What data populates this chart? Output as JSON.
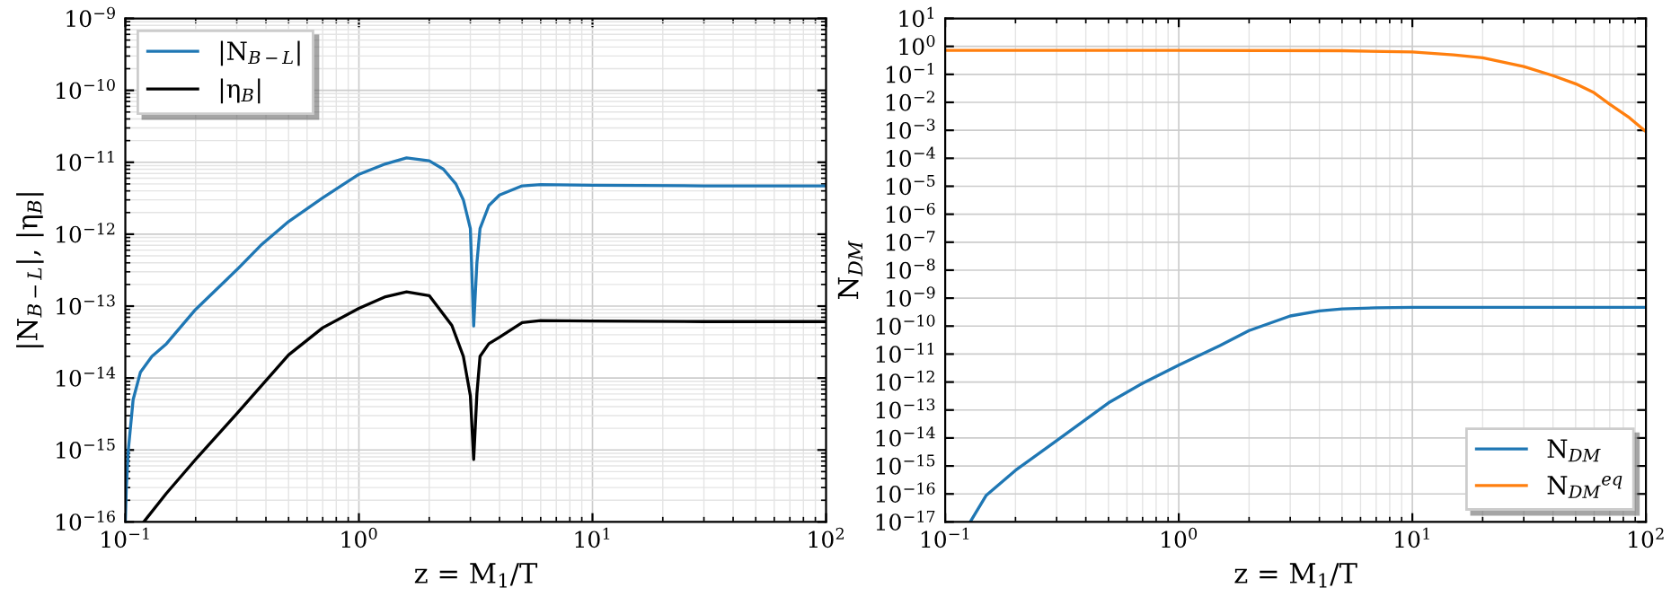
{
  "chart_data": [
    {
      "type": "line",
      "xlabel": "z = M$_{1}$/T",
      "ylabel": "|N$_{B−L}$|, |η$_{B}$|",
      "log": "xy",
      "xlim": [
        0.1,
        100
      ],
      "ylim": [
        1e-16,
        1e-09
      ],
      "xticks": [
        {
          "value": 0.1,
          "label": "10$^{−1}$"
        },
        {
          "value": 1,
          "label": "10$^{0}$"
        },
        {
          "value": 10,
          "label": "10$^{1}$"
        },
        {
          "value": 100,
          "label": "10$^{2}$"
        }
      ],
      "yticks": [
        {
          "value": 1e-16,
          "label": "10$^{−16}$"
        },
        {
          "value": 1e-15,
          "label": "10$^{−15}$"
        },
        {
          "value": 1e-14,
          "label": "10$^{−14}$"
        },
        {
          "value": 1e-13,
          "label": "10$^{−13}$"
        },
        {
          "value": 1e-12,
          "label": "10$^{−12}$"
        },
        {
          "value": 1e-11,
          "label": "10$^{−11}$"
        },
        {
          "value": 1e-10,
          "label": "10$^{−10}$"
        },
        {
          "value": 1e-09,
          "label": "10$^{−9}$"
        }
      ],
      "grid": true,
      "legend": "top left",
      "line_style": "solid",
      "marker": "none",
      "series": [
        {
          "name": "|N$_{B−L}$|",
          "color": "#1f77b4",
          "x": [
            0.1,
            0.101,
            0.103,
            0.108,
            0.116,
            0.13,
            0.15,
            0.2,
            0.3,
            0.38,
            0.5,
            0.7,
            1,
            1.3,
            1.6,
            2,
            2.3,
            2.6,
            2.8,
            3.0,
            3.1,
            3.2,
            3.3,
            3.6,
            4,
            5,
            6,
            10,
            30,
            100
          ],
          "values": [
            1e-16,
            3e-16,
            1e-15,
            5e-15,
            1.2e-14,
            2e-14,
            3e-14,
            9e-14,
            3.2e-13,
            7e-13,
            1.5e-12,
            3.2e-12,
            6.8e-12,
            9.5e-12,
            1.15e-11,
            1.05e-11,
            8e-12,
            5e-12,
            3e-12,
            1.2e-12,
            5.3e-14,
            4e-13,
            1.2e-12,
            2.5e-12,
            3.5e-12,
            4.7e-12,
            4.9e-12,
            4.8e-12,
            4.7e-12,
            4.7e-12
          ]
        },
        {
          "name": "|η$_{B}$|",
          "color": "#000000",
          "x": [
            0.12,
            0.15,
            0.2,
            0.3,
            0.5,
            0.7,
            1,
            1.3,
            1.6,
            2,
            2.5,
            2.8,
            3.0,
            3.1,
            3.2,
            3.3,
            3.6,
            4,
            5,
            6,
            10,
            30,
            100
          ],
          "values": [
            1e-16,
            2.5e-16,
            7.4e-16,
            3.2e-15,
            2.1e-14,
            5e-14,
            9.3e-14,
            1.35e-13,
            1.58e-13,
            1.4e-13,
            5.4e-14,
            2e-14,
            5.7e-15,
            7.4e-16,
            6e-15,
            2e-14,
            3e-14,
            3.7e-14,
            5.9e-14,
            6.3e-14,
            6.2e-14,
            6.1e-14,
            6.1e-14
          ]
        }
      ]
    },
    {
      "type": "line",
      "xlabel": "z = M$_{1}$/T",
      "ylabel": "N$_{DM}$",
      "log": "xy",
      "xlim": [
        0.1,
        100
      ],
      "ylim": [
        1e-17,
        10
      ],
      "xticks": [
        {
          "value": 0.1,
          "label": "10$^{−1}$"
        },
        {
          "value": 1,
          "label": "10$^{0}$"
        },
        {
          "value": 10,
          "label": "10$^{1}$"
        },
        {
          "value": 100,
          "label": "10$^{2}$"
        }
      ],
      "yticks": [
        {
          "value": 1e-17,
          "label": "10$^{−17}$"
        },
        {
          "value": 1e-16,
          "label": "10$^{−16}$"
        },
        {
          "value": 1e-15,
          "label": "10$^{−15}$"
        },
        {
          "value": 1e-14,
          "label": "10$^{−14}$"
        },
        {
          "value": 1e-13,
          "label": "10$^{−13}$"
        },
        {
          "value": 1e-12,
          "label": "10$^{−12}$"
        },
        {
          "value": 1e-11,
          "label": "10$^{−11}$"
        },
        {
          "value": 1e-10,
          "label": "10$^{−10}$"
        },
        {
          "value": 1e-09,
          "label": "10$^{−9}$"
        },
        {
          "value": 1e-08,
          "label": "10$^{−8}$"
        },
        {
          "value": 1e-07,
          "label": "10$^{−7}$"
        },
        {
          "value": 1e-06,
          "label": "10$^{−6}$"
        },
        {
          "value": 1e-05,
          "label": "10$^{−5}$"
        },
        {
          "value": 0.0001,
          "label": "10$^{−4}$"
        },
        {
          "value": 0.001,
          "label": "10$^{−3}$"
        },
        {
          "value": 0.01,
          "label": "10$^{−2}$"
        },
        {
          "value": 0.1,
          "label": "10$^{−1}$"
        },
        {
          "value": 1,
          "label": "10$^{0}$"
        },
        {
          "value": 10,
          "label": "10$^{1}$"
        }
      ],
      "grid": true,
      "legend": "bottom right",
      "line_style": "solid",
      "marker": "none",
      "series": [
        {
          "name": "N$_{DM}$",
          "color": "#1f77b4",
          "x": [
            0.128,
            0.15,
            0.2,
            0.3,
            0.5,
            0.7,
            1,
            1.5,
            2,
            3,
            4,
            5,
            7,
            10,
            30,
            100
          ],
          "values": [
            1e-17,
            9e-17,
            7e-16,
            8e-15,
            1.8e-13,
            9e-13,
            4e-12,
            2e-11,
            6.9e-11,
            2.3e-10,
            3.5e-10,
            4.1e-10,
            4.5e-10,
            4.7e-10,
            4.7e-10,
            4.7e-10
          ]
        },
        {
          "name": "N$_{DM}$$^{eq}$",
          "color": "#ff7f0e",
          "x": [
            0.1,
            1,
            5,
            10,
            15,
            20,
            30,
            40,
            50,
            60,
            70,
            85,
            100
          ],
          "values": [
            0.72,
            0.72,
            0.7,
            0.63,
            0.5,
            0.39,
            0.19,
            0.09,
            0.046,
            0.022,
            0.0085,
            0.0028,
            0.0009
          ]
        }
      ]
    }
  ]
}
